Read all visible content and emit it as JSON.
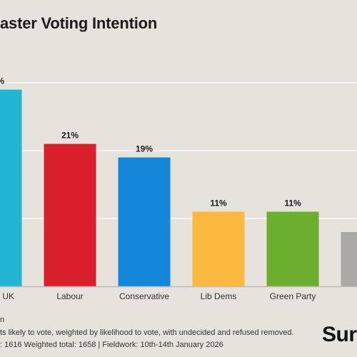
{
  "header": {
    "title": "aster Voting Intention"
  },
  "footer": {
    "note_top": "n",
    "note": "ts likely to vote, weighted by likelihood to vote, with undecided and refused removed.",
    "base": ": 1616 Weighted total: 1658 | Fieldwork: 10th-14th January 2026"
  },
  "brand": {
    "logo_text": "Sur"
  },
  "chart_data": {
    "type": "bar",
    "title": "aster Voting Intention",
    "categories": [
      "n UK",
      "Labour",
      "Conservative",
      "Lib Dems",
      "Green Party",
      ""
    ],
    "values": [
      29,
      21,
      19,
      11,
      11,
      8
    ],
    "value_labels": [
      "%",
      "21%",
      "19%",
      "11%",
      "11%",
      ""
    ],
    "colors": [
      "#1fb5d3",
      "#d91f2b",
      "#1487db",
      "#fcb940",
      "#6cae2d",
      "#a9a8a4"
    ],
    "ylim": [
      0,
      30
    ],
    "grid": true
  }
}
